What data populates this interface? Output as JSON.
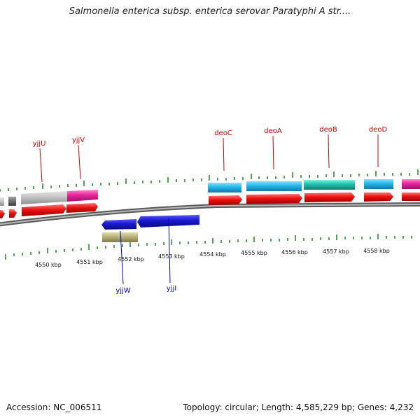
{
  "title": "Salmonella enterica subsp. enterica serovar Paratyphi A str....",
  "accession_label": "Accession: NC_006511",
  "summary_label": "Topology: circular; Length: 4,585,229 bp; Genes: 4,232",
  "colors": {
    "backbone": "#8a8a8a",
    "tick": "#2e8b2e",
    "cds": "#ee1111",
    "cds_light": "#ff6666",
    "blue_gene": "#1a1acc",
    "cyan": "#22b8e8",
    "teal": "#1cc0aa",
    "magenta": "#e8249c",
    "gray_light": "#c4c4c4",
    "gray_dark": "#707070",
    "olive": "#b8b478",
    "label_top": "#cc0000",
    "label_bottom": "#0000cc"
  },
  "scale": {
    "unit": "kbp",
    "labels": [
      "4550 kbp",
      "4551 kbp",
      "4552 kbp",
      "4553 kbp",
      "4554 kbp",
      "4555 kbp",
      "4556 kbp",
      "4557 kbp",
      "4558 kbp"
    ]
  },
  "genes_top": [
    "yjjU",
    "yjjV",
    "deoC",
    "deoA",
    "deoB",
    "deoD"
  ],
  "genes_bottom": [
    "yjjW",
    "yjjI"
  ]
}
